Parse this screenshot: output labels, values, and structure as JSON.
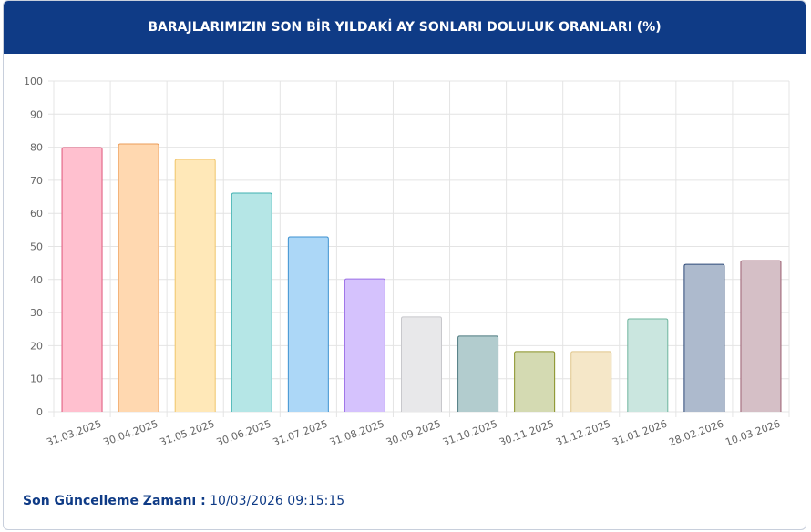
{
  "chart_data": {
    "type": "bar",
    "title": "BARAJLARIMIZIN SON BİR YILDAKİ AY SONLARI DOLULUK ORANLARI (%)",
    "categories": [
      "31.03.2025",
      "30.04.2025",
      "31.05.2025",
      "30.06.2025",
      "31.07.2025",
      "31.08.2025",
      "30.09.2025",
      "31.10.2025",
      "30.11.2025",
      "31.12.2025",
      "31.01.2026",
      "28.02.2026",
      "10.03.2026"
    ],
    "values": [
      79.9,
      81.0,
      76.3,
      66.1,
      52.9,
      40.2,
      28.7,
      22.9,
      18.2,
      18.2,
      28.1,
      44.6,
      45.7
    ],
    "colors": [
      "#ffc0cf",
      "#ffd8b0",
      "#ffe8b8",
      "#b5e6e6",
      "#acd7f7",
      "#d5c2fd",
      "#e8e8ea",
      "#b2ccce",
      "#d4dab2",
      "#f5e7c8",
      "#cae6df",
      "#adbacd",
      "#d5bfc6"
    ],
    "border_colors": [
      "#e0567a",
      "#eb9c58",
      "#f0c56a",
      "#3fb0b0",
      "#3d91d0",
      "#9b6fe6",
      "#c8c8cc",
      "#4e7a80",
      "#868f22",
      "#e0c68c",
      "#6fb59e",
      "#2e4a78",
      "#9a5e70"
    ],
    "ylim": [
      0,
      100
    ],
    "yticks": [
      0,
      10,
      20,
      30,
      40,
      50,
      60,
      70,
      80,
      90,
      100
    ],
    "grid": true
  },
  "footer": {
    "label": "Son Güncelleme Zamanı :",
    "value": "10/03/2026 09:15:15"
  }
}
